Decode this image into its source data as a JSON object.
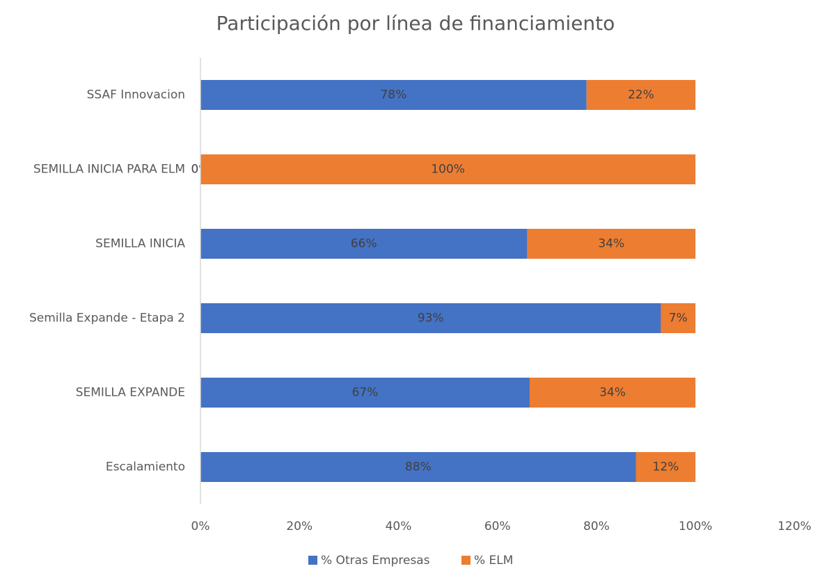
{
  "chart_data": {
    "type": "stacked_bar_horizontal",
    "title": "Participación por línea de financiamiento",
    "categories": [
      "SSAF Innovacion",
      "SEMILLA INICIA PARA ELM",
      "SEMILLA INICIA",
      "Semilla Expande - Etapa 2",
      "SEMILLA EXPANDE",
      "Escalamiento"
    ],
    "series": [
      {
        "name": "% Otras Empresas",
        "color": "#4472c4",
        "values": [
          78,
          0,
          66,
          93,
          66.5,
          88
        ],
        "value_labels": [
          "78%",
          "0%",
          "66%",
          "93%",
          "67%",
          "88%"
        ]
      },
      {
        "name": "% ELM",
        "color": "#ed7d31",
        "values": [
          22,
          100,
          34,
          7,
          33.5,
          12
        ],
        "value_labels": [
          "22%",
          "100%",
          "34%",
          "7%",
          "34%",
          "12%"
        ]
      }
    ],
    "xlim": [
      0,
      120
    ],
    "xticks": [
      {
        "value": 0,
        "label": "0%"
      },
      {
        "value": 20,
        "label": "20%"
      },
      {
        "value": 40,
        "label": "40%"
      },
      {
        "value": 60,
        "label": "60%"
      },
      {
        "value": 80,
        "label": "80%"
      },
      {
        "value": 100,
        "label": "100%"
      },
      {
        "value": 120,
        "label": "120%"
      }
    ],
    "grid": false,
    "legend": "bottom"
  }
}
